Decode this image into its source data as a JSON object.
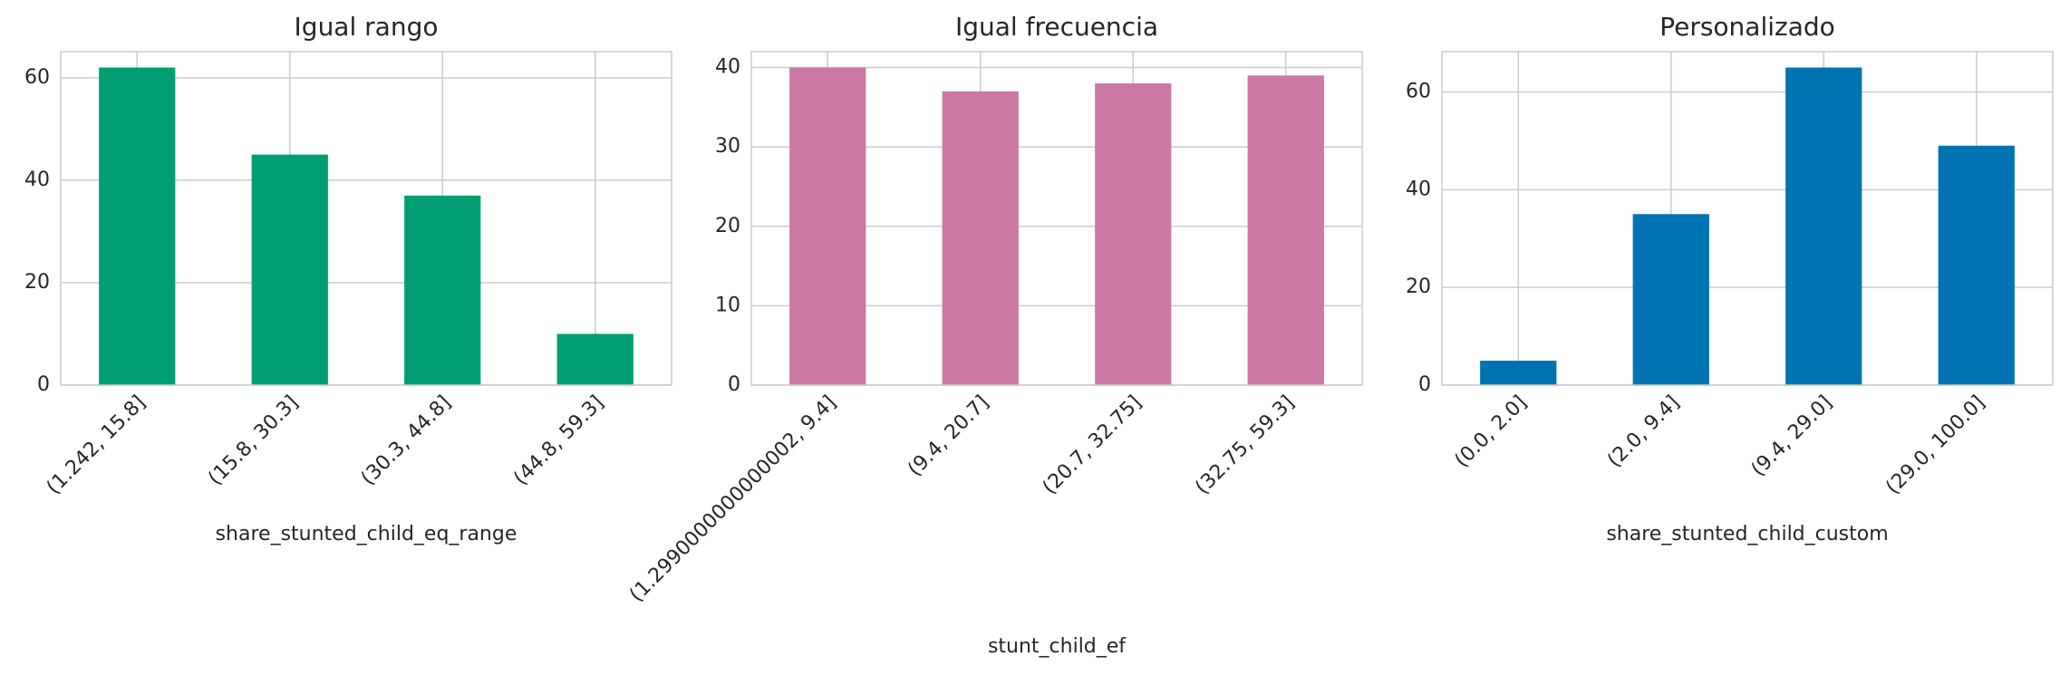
{
  "chart_data": [
    {
      "type": "bar",
      "title": "Igual rango",
      "xlabel": "share_stunted_child_eq_range",
      "categories": [
        "(1.242, 15.8]",
        "(15.8, 30.3]",
        "(30.3, 44.8]",
        "(44.8, 59.3]"
      ],
      "values": [
        62,
        45,
        37,
        10
      ],
      "color": "#029e73",
      "ylim": [
        0,
        65.1
      ],
      "yticks": [
        0,
        20,
        40,
        60
      ],
      "grid": true
    },
    {
      "type": "bar",
      "title": "Igual frecuencia",
      "xlabel": "stunt_child_ef",
      "categories": [
        "(1.2990000000000002, 9.4]",
        "(9.4, 20.7]",
        "(20.7, 32.75]",
        "(32.75, 59.3]"
      ],
      "values": [
        40,
        37,
        38,
        39
      ],
      "color": "#cc78a4",
      "ylim": [
        0,
        42
      ],
      "yticks": [
        0,
        10,
        20,
        30,
        40
      ],
      "grid": true
    },
    {
      "type": "bar",
      "title": "Personalizado",
      "xlabel": "share_stunted_child_custom",
      "categories": [
        "(0.0, 2.0]",
        "(2.0, 9.4]",
        "(9.4, 29.0]",
        "(29.0, 100.0]"
      ],
      "values": [
        5,
        35,
        65,
        49
      ],
      "color": "#0173b2",
      "ylim": [
        0,
        68.25
      ],
      "yticks": [
        0,
        20,
        40,
        60
      ],
      "grid": true
    }
  ]
}
